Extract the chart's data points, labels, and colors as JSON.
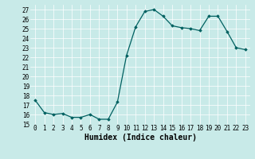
{
  "x": [
    0,
    1,
    2,
    3,
    4,
    5,
    6,
    7,
    8,
    9,
    10,
    11,
    12,
    13,
    14,
    15,
    16,
    17,
    18,
    19,
    20,
    21,
    22,
    23
  ],
  "y": [
    17.5,
    16.2,
    16.0,
    16.1,
    15.7,
    15.7,
    16.0,
    15.5,
    15.5,
    17.3,
    22.2,
    25.2,
    26.8,
    27.0,
    26.3,
    25.3,
    25.1,
    25.0,
    24.8,
    26.3,
    26.3,
    24.7,
    23.0,
    22.8
  ],
  "line_color": "#006060",
  "marker": "D",
  "markersize": 1.8,
  "linewidth": 0.9,
  "background_color": "#c8eae8",
  "grid_color": "#ffffff",
  "xlabel": "Humidex (Indice chaleur)",
  "xlim": [
    -0.5,
    23.5
  ],
  "ylim": [
    15,
    27.5
  ],
  "yticks": [
    15,
    16,
    17,
    18,
    19,
    20,
    21,
    22,
    23,
    24,
    25,
    26,
    27
  ],
  "xticks": [
    0,
    1,
    2,
    3,
    4,
    5,
    6,
    7,
    8,
    9,
    10,
    11,
    12,
    13,
    14,
    15,
    16,
    17,
    18,
    19,
    20,
    21,
    22,
    23
  ],
  "tick_fontsize": 5.5,
  "xlabel_fontsize": 7.0
}
